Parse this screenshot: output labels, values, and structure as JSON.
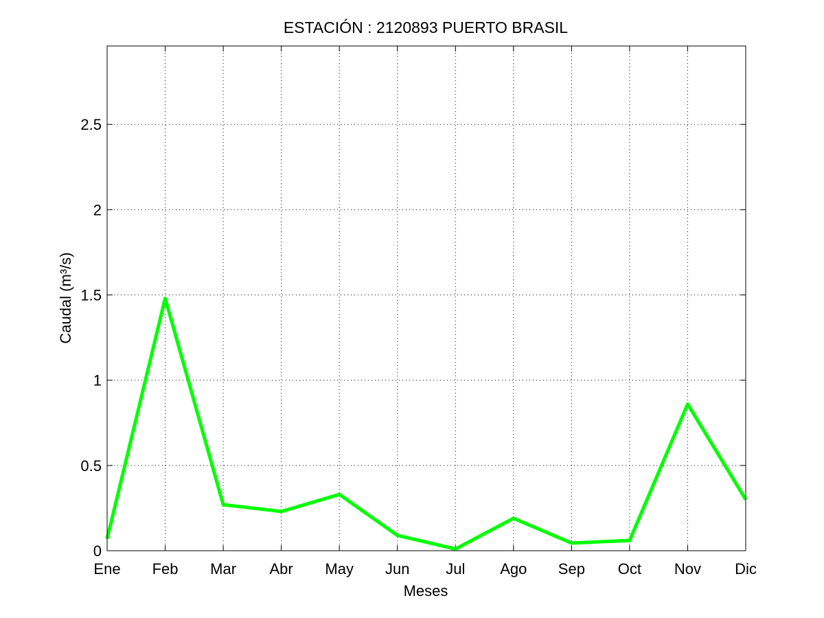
{
  "chart_data": {
    "type": "line",
    "title": "ESTACIÓN :  2120893  PUERTO BRASIL",
    "xlabel": "Meses",
    "ylabel": "Caudal (m³/s)",
    "categories": [
      "Ene",
      "Feb",
      "Mar",
      "Abr",
      "May",
      "Jun",
      "Jul",
      "Ago",
      "Sep",
      "Oct",
      "Nov",
      "Dic"
    ],
    "series": [
      {
        "values": [
          0.07,
          1.48,
          0.27,
          0.23,
          0.33,
          0.09,
          0.01,
          0.19,
          0.045,
          0.06,
          0.86,
          0.3
        ],
        "color": "#00ff00"
      }
    ],
    "ylim": [
      0,
      2.96
    ],
    "yticks": [
      0,
      0.5,
      1,
      1.5,
      2,
      2.5
    ],
    "ytick_labels": [
      "0",
      "0.5",
      "1",
      "1.5",
      "2",
      "2.5"
    ],
    "grid": true,
    "frame_color": "#000000"
  }
}
